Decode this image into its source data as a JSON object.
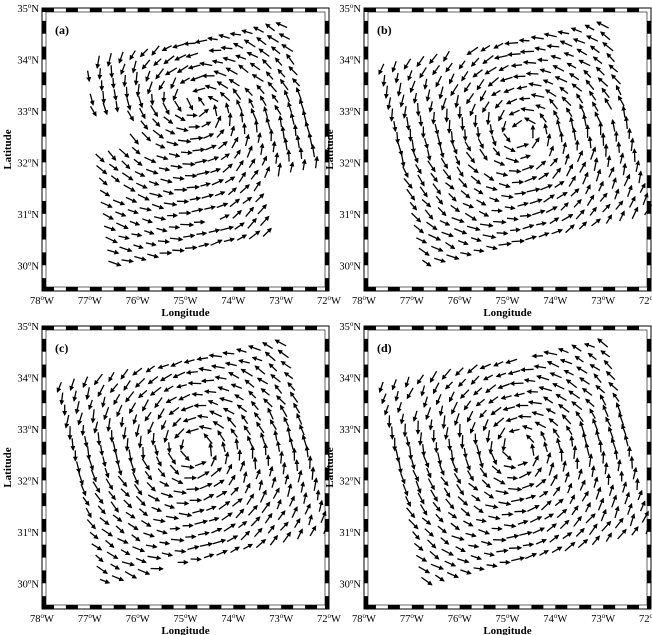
{
  "figure": {
    "xlabel": "Longitude",
    "ylabel": "Latitude",
    "x_ticks": [
      "78°W",
      "77°W",
      "76°W",
      "75°W",
      "74°W",
      "73°W",
      "72°W"
    ],
    "y_ticks": [
      "35°N",
      "34°N",
      "33°N",
      "32°N",
      "31°N",
      "30°N"
    ],
    "colors": {
      "arrow": "#000000",
      "frame": "#000000",
      "background": "#ffffff"
    }
  },
  "chart_data": [
    {
      "type": "vector-field",
      "label": "(a)",
      "xlabel": "Longitude",
      "ylabel": "Latitude",
      "xlim": [
        -78,
        -72
      ],
      "ylim": [
        29.5,
        35
      ],
      "swath_corners": [
        [
          -77.2,
          34.0
        ],
        [
          -72.9,
          34.8
        ],
        [
          -71.8,
          30.8
        ],
        [
          -76.6,
          29.9
        ]
      ],
      "vortex_center": [
        -74.8,
        32.5
      ],
      "rotation": "counterclockwise",
      "pattern": "partial"
    },
    {
      "type": "vector-field",
      "label": "(b)",
      "xlabel": "Longitude",
      "ylabel": "Latitude",
      "xlim": [
        -78,
        -72
      ],
      "ylim": [
        29.5,
        35
      ],
      "swath_corners": [
        [
          -77.8,
          33.9
        ],
        [
          -72.9,
          34.8
        ],
        [
          -71.9,
          31.0
        ],
        [
          -76.8,
          29.9
        ]
      ],
      "vortex_center": [
        -74.7,
        32.6
      ],
      "rotation": "counterclockwise",
      "pattern": "full"
    },
    {
      "type": "vector-field",
      "label": "(c)",
      "xlabel": "Longitude",
      "ylabel": "Latitude",
      "xlim": [
        -78,
        -72
      ],
      "ylim": [
        29.5,
        35
      ],
      "swath_corners": [
        [
          -77.8,
          33.9
        ],
        [
          -72.9,
          34.8
        ],
        [
          -71.9,
          31.0
        ],
        [
          -76.8,
          29.9
        ]
      ],
      "vortex_center": [
        -74.8,
        32.6
      ],
      "rotation": "counterclockwise",
      "pattern": "full"
    },
    {
      "type": "vector-field",
      "label": "(d)",
      "xlabel": "Longitude",
      "ylabel": "Latitude",
      "xlim": [
        -78,
        -72
      ],
      "ylim": [
        29.5,
        35
      ],
      "swath_corners": [
        [
          -77.8,
          33.9
        ],
        [
          -72.9,
          34.8
        ],
        [
          -71.9,
          31.0
        ],
        [
          -76.8,
          29.9
        ]
      ],
      "vortex_center": [
        -74.8,
        32.6
      ],
      "rotation": "counterclockwise",
      "pattern": "full"
    }
  ]
}
